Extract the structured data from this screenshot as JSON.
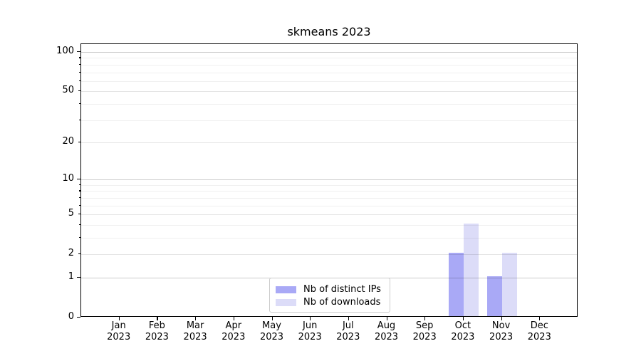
{
  "chart_data": {
    "type": "bar",
    "title": "skmeans 2023",
    "categories": [
      "Jan 2023",
      "Feb 2023",
      "Mar 2023",
      "Apr 2023",
      "May 2023",
      "Jun 2023",
      "Jul 2023",
      "Aug 2023",
      "Sep 2023",
      "Oct 2023",
      "Nov 2023",
      "Dec 2023"
    ],
    "series": [
      {
        "name": "Nb of distinct IPs",
        "color": "#a9a9f6",
        "values": [
          0,
          0,
          0,
          0,
          0,
          0,
          0,
          0,
          0,
          2,
          1,
          0
        ]
      },
      {
        "name": "Nb of downloads",
        "color": "#dcdcf8",
        "values": [
          0,
          0,
          0,
          0,
          0,
          0,
          0,
          0,
          0,
          4,
          2,
          0
        ]
      }
    ],
    "yscale": "log1p",
    "ylim": [
      0,
      115
    ],
    "y_ticks_labeled": [
      0,
      1,
      2,
      5,
      10,
      20,
      50,
      100
    ],
    "y_ticks_power": [
      1,
      10,
      100
    ],
    "y_ticks_minor": [
      3,
      4,
      6,
      7,
      8,
      9,
      30,
      40,
      60,
      70,
      80,
      90
    ],
    "grid": true,
    "grid_over_bars": true,
    "legend_position": "bottom-center-inside"
  }
}
